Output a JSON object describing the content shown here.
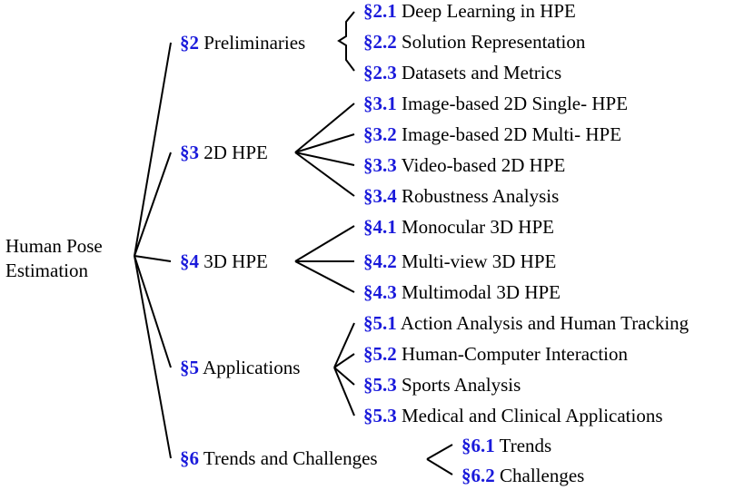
{
  "root": {
    "line1": "Human Pose",
    "line2": "Estimation"
  },
  "sections": [
    {
      "num": "§2",
      "label": "Preliminaries",
      "children": [
        {
          "num": "§2.1",
          "label": "Deep Learning in HPE"
        },
        {
          "num": "§2.2",
          "label": "Solution Representation"
        },
        {
          "num": "§2.3",
          "label": "Datasets and Metrics"
        }
      ]
    },
    {
      "num": "§3",
      "label": "2D HPE",
      "children": [
        {
          "num": "§3.1",
          "label": "Image-based 2D Single- HPE"
        },
        {
          "num": "§3.2",
          "label": "Image-based 2D Multi- HPE"
        },
        {
          "num": "§3.3",
          "label": "Video-based 2D HPE"
        },
        {
          "num": "§3.4",
          "label": "Robustness Analysis"
        }
      ]
    },
    {
      "num": "§4",
      "label": "3D HPE",
      "children": [
        {
          "num": "§4.1",
          "label": "Monocular 3D HPE"
        },
        {
          "num": "§4.2",
          "label": "Multi-view 3D HPE"
        },
        {
          "num": "§4.3",
          "label": "Multimodal 3D HPE"
        }
      ]
    },
    {
      "num": "§5",
      "label": "Applications",
      "children": [
        {
          "num": "§5.1",
          "label": "Action Analysis and Human Tracking"
        },
        {
          "num": "§5.2",
          "label": "Human-Computer Interaction"
        },
        {
          "num": "§5.3",
          "label": "Sports Analysis"
        },
        {
          "num": "§5.3",
          "label": "Medical and Clinical Applications"
        }
      ]
    },
    {
      "num": "§6",
      "label": "Trends and Challenges",
      "children": [
        {
          "num": "§6.1",
          "label": "Trends"
        },
        {
          "num": "§6.2",
          "label": "Challenges"
        }
      ]
    }
  ],
  "colors": {
    "number": "#1a1adb",
    "text": "#000000",
    "line": "#000000"
  }
}
